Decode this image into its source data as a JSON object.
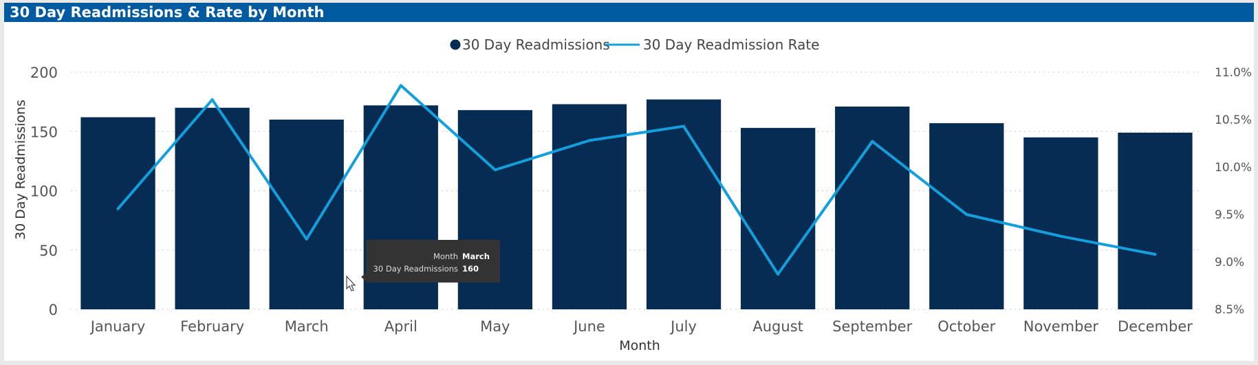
{
  "visual": {
    "title": "30 Day Readmissions & Rate by Month"
  },
  "chart_data": {
    "type": "bar",
    "title": "30 Day Readmissions & Rate by Month",
    "xlabel": "Month",
    "ylabel": "30 Day Readmissions",
    "y2label": "",
    "categories": [
      "January",
      "February",
      "March",
      "April",
      "May",
      "June",
      "July",
      "August",
      "September",
      "October",
      "November",
      "December"
    ],
    "series": [
      {
        "name": "30 Day Readmissions",
        "type": "bar",
        "axis": "left",
        "color": "#062c53",
        "values": [
          162,
          170,
          160,
          172,
          168,
          173,
          177,
          153,
          171,
          157,
          145,
          149
        ]
      },
      {
        "name": "30 Day Readmission Rate",
        "type": "line",
        "axis": "right",
        "color": "#129fdb",
        "values": [
          9.56,
          10.71,
          9.24,
          10.86,
          9.97,
          10.28,
          10.43,
          8.87,
          10.27,
          9.5,
          9.27,
          9.08
        ]
      }
    ],
    "ylim": [
      0,
      200
    ],
    "yticks": [
      0,
      50,
      100,
      150,
      200
    ],
    "y2lim": [
      8.5,
      11.0
    ],
    "y2ticks": [
      "8.5%",
      "9.0%",
      "9.5%",
      "10.0%",
      "10.5%",
      "11.0%"
    ],
    "grid": true,
    "legend_position": "top-center",
    "tooltip": {
      "rows": [
        {
          "label": "Month",
          "value": "March"
        },
        {
          "label": "30 Day Readmissions",
          "value": "160"
        }
      ]
    }
  }
}
